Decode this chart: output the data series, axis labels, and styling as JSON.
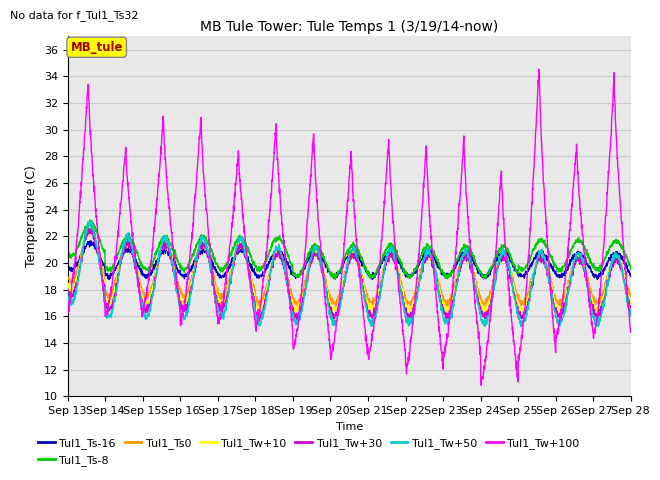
{
  "title": "MB Tule Tower: Tule Temps 1 (3/19/14-now)",
  "subtitle": "No data for f_Tul1_Ts32",
  "xlabel": "Time",
  "ylabel": "Temperature (C)",
  "ylim": [
    10,
    37
  ],
  "yticks": [
    10,
    12,
    14,
    16,
    18,
    20,
    22,
    24,
    26,
    28,
    30,
    32,
    34,
    36
  ],
  "x_labels": [
    "Sep 13",
    "Sep 14",
    "Sep 15",
    "Sep 16",
    "Sep 17",
    "Sep 18",
    "Sep 19",
    "Sep 20",
    "Sep 21",
    "Sep 22",
    "Sep 23",
    "Sep 24",
    "Sep 25",
    "Sep 26",
    "Sep 27",
    "Sep 28"
  ],
  "legend_label": "MB_tule",
  "legend_box_color": "#ffff00",
  "legend_box_text_color": "#aa0000",
  "lines": {
    "Tul1_Ts-16": {
      "color": "#0000bb"
    },
    "Tul1_Ts-8": {
      "color": "#00cc00"
    },
    "Tul1_Ts0": {
      "color": "#ff9900"
    },
    "Tul1_Tw+10": {
      "color": "#ffff00"
    },
    "Tul1_Tw+30": {
      "color": "#cc00cc"
    },
    "Tul1_Tw+50": {
      "color": "#00cccc"
    },
    "Tul1_Tw+100": {
      "color": "#ff00ff"
    }
  },
  "background_color": "#ffffff",
  "grid_color": "#cccccc",
  "spike_peaks": [
    33.8,
    28.8,
    31.0,
    31.0,
    28.5,
    30.5,
    30.0,
    28.5,
    29.5,
    29.0,
    29.5,
    27.0,
    34.8,
    29.0,
    34.0
  ],
  "spike_valleys_magenta": [
    16.5,
    16.0,
    16.5,
    15.5,
    15.5,
    15.0,
    13.5,
    13.0,
    13.0,
    12.0,
    13.0,
    11.0,
    13.0,
    14.5,
    14.5
  ],
  "other_valleys": [
    17.5,
    17.0,
    17.0,
    16.5,
    16.5,
    16.0,
    15.5,
    15.5,
    15.5,
    16.0,
    16.0,
    16.0,
    16.5,
    16.5,
    17.0
  ]
}
